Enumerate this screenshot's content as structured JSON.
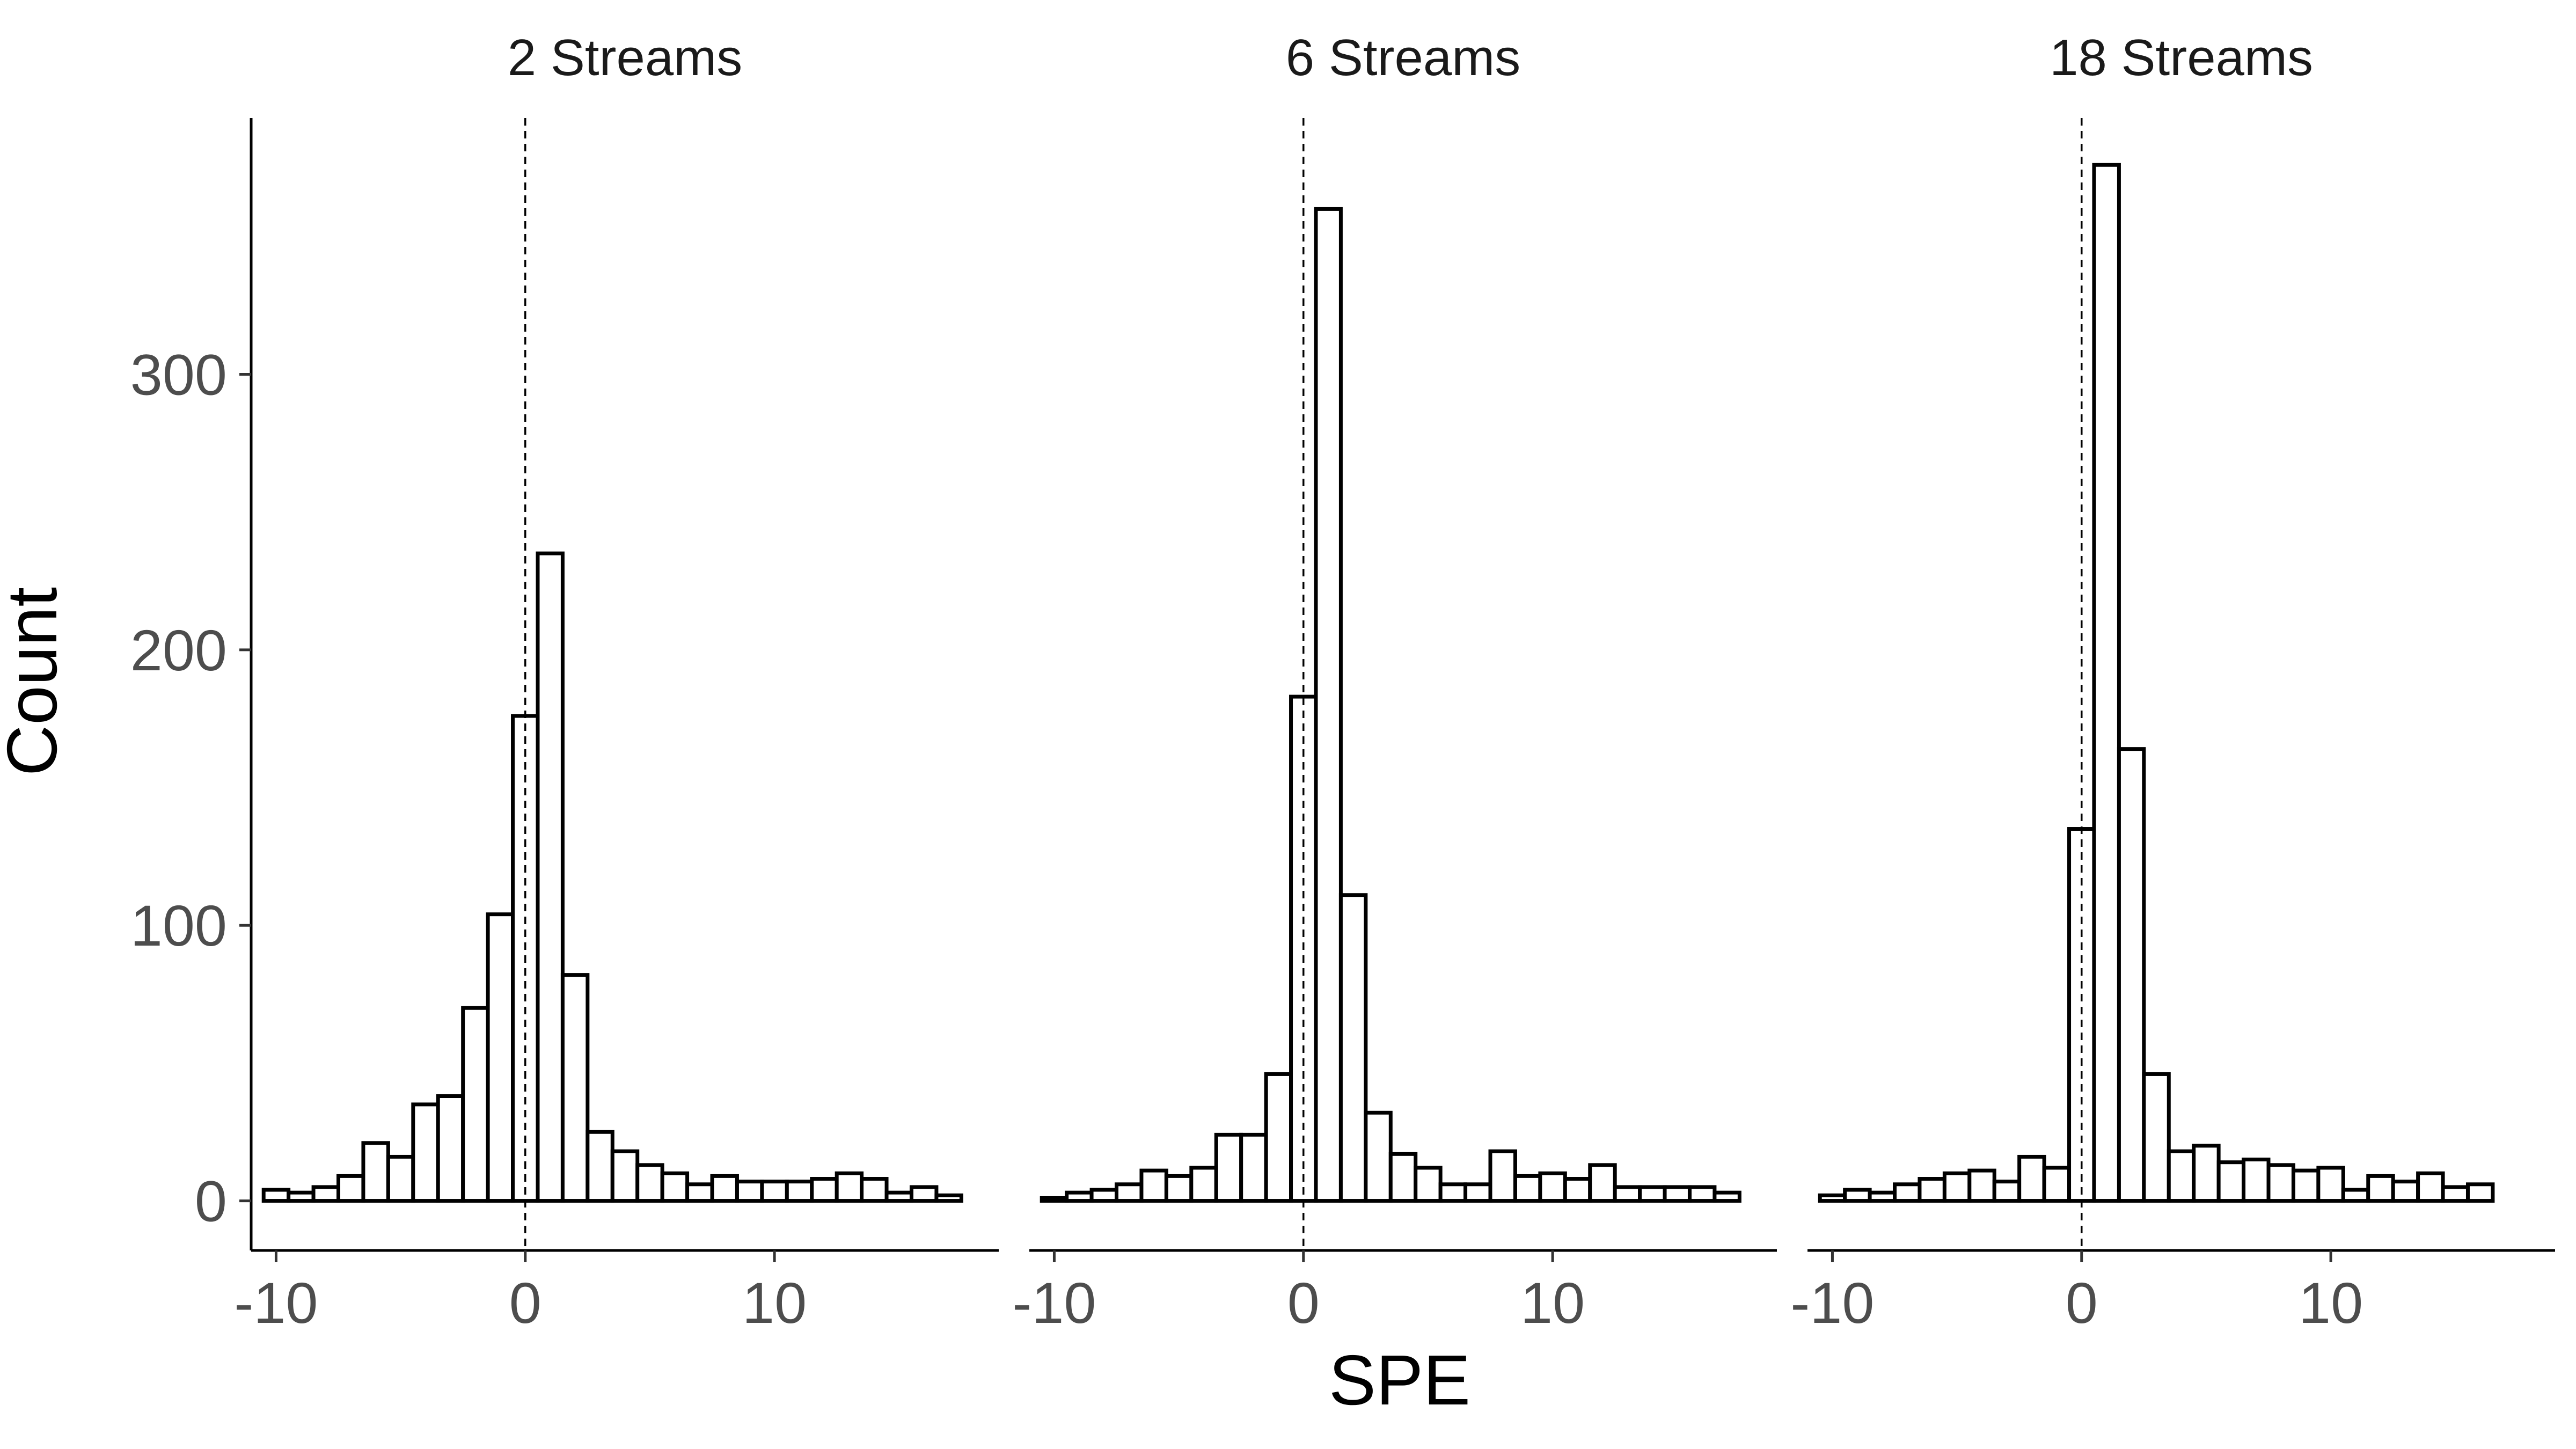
{
  "chart_data": {
    "type": "bar",
    "chart_kind": "faceted histogram",
    "xlabel": "SPE",
    "ylabel": "Count",
    "xlim": [
      -11,
      19
    ],
    "ylim": [
      -18,
      393
    ],
    "x_ticks": [
      -10,
      0,
      10
    ],
    "x_tick_labels": [
      "-10",
      "0",
      "10"
    ],
    "y_ticks": [
      0,
      100,
      200,
      300
    ],
    "y_tick_labels": [
      "0",
      "100",
      "200",
      "300"
    ],
    "bin_width": 1,
    "reference_line": {
      "x": 0,
      "style": "dashed"
    },
    "grid": false,
    "bar_fill": "#ffffff",
    "bar_stroke": "#000000",
    "facets": [
      {
        "title": "2 Streams",
        "bin_centers": [
          -10,
          -9,
          -8,
          -7,
          -6,
          -5,
          -4,
          -3,
          -2,
          -1,
          0,
          1,
          2,
          3,
          4,
          5,
          6,
          7,
          8,
          9,
          10,
          11,
          12,
          13,
          14,
          15,
          16,
          17
        ],
        "values": [
          4,
          3,
          5,
          9,
          21,
          16,
          35,
          38,
          70,
          104,
          176,
          235,
          82,
          25,
          18,
          13,
          10,
          6,
          9,
          7,
          7,
          7,
          8,
          10,
          8,
          3,
          5,
          2
        ]
      },
      {
        "title": "6 Streams",
        "bin_centers": [
          -10,
          -9,
          -8,
          -7,
          -6,
          -5,
          -4,
          -3,
          -2,
          -1,
          0,
          1,
          2,
          3,
          4,
          5,
          6,
          7,
          8,
          9,
          10,
          11,
          12,
          13,
          14,
          15,
          16,
          17
        ],
        "values": [
          1,
          3,
          4,
          6,
          11,
          9,
          12,
          24,
          24,
          46,
          183,
          360,
          111,
          32,
          17,
          12,
          6,
          6,
          18,
          9,
          10,
          8,
          13,
          5,
          5,
          5,
          5,
          3
        ]
      },
      {
        "title": "18 Streams",
        "bin_centers": [
          -10,
          -9,
          -8,
          -7,
          -6,
          -5,
          -4,
          -3,
          -2,
          -1,
          0,
          1,
          2,
          3,
          4,
          5,
          6,
          7,
          8,
          9,
          10,
          11,
          12,
          13,
          14,
          15,
          16
        ],
        "values": [
          2,
          4,
          3,
          6,
          8,
          10,
          11,
          7,
          16,
          12,
          135,
          376,
          164,
          46,
          18,
          20,
          14,
          15,
          13,
          11,
          12,
          4,
          9,
          7,
          10,
          5,
          6
        ]
      }
    ]
  }
}
